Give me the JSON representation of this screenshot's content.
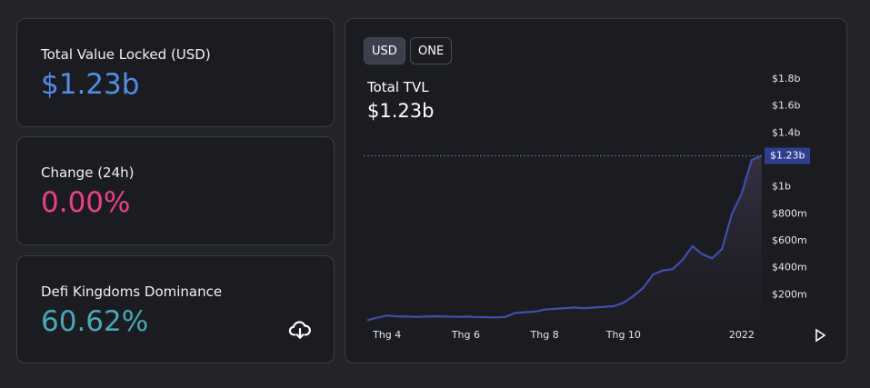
{
  "cards": [
    {
      "label": "Total Value Locked (USD)",
      "value": "$1.23b"
    },
    {
      "label": "Change (24h)",
      "value": "0.00%"
    },
    {
      "label": "Defi Kingdoms Dominance",
      "value": "60.62%"
    }
  ],
  "buttons": [
    "USD",
    "ONE"
  ],
  "chart_data": {
    "type": "line",
    "title": "Total TVL",
    "subtitle": "$1.23b",
    "categories": [
      null,
      null,
      "Thg 4",
      null,
      null,
      null,
      null,
      null,
      null,
      null,
      "Thg 6",
      null,
      null,
      null,
      null,
      null,
      null,
      null,
      "Thg 8",
      null,
      null,
      null,
      null,
      null,
      null,
      null,
      "Thg 10",
      null,
      null,
      null,
      null,
      null,
      null,
      null,
      null,
      null,
      null,
      null,
      "2022",
      null,
      null
    ],
    "series": [
      {
        "name": "TVL",
        "color": "#3f4fb0",
        "values": [
          10,
          30,
          45,
          40,
          38,
          35,
          38,
          40,
          38,
          36,
          38,
          35,
          33,
          32,
          35,
          65,
          70,
          75,
          90,
          95,
          100,
          105,
          100,
          105,
          110,
          115,
          140,
          190,
          250,
          350,
          380,
          390,
          460,
          560,
          500,
          470,
          540,
          800,
          950,
          1200,
          1230
        ]
      }
    ],
    "ylim": [
      0,
      1850
    ],
    "yticks": [
      {
        "value": 200,
        "label": "$200m"
      },
      {
        "value": 400,
        "label": "$400m"
      },
      {
        "value": 600,
        "label": "$600m"
      },
      {
        "value": 800,
        "label": "$800m"
      },
      {
        "value": 1000,
        "label": "$1b"
      },
      {
        "value": 1400,
        "label": "$1.4b"
      },
      {
        "value": 1600,
        "label": "$1.6b"
      },
      {
        "value": 1800,
        "label": "$1.8b"
      }
    ],
    "current": {
      "value": 1230,
      "label": "$1.23b"
    }
  }
}
